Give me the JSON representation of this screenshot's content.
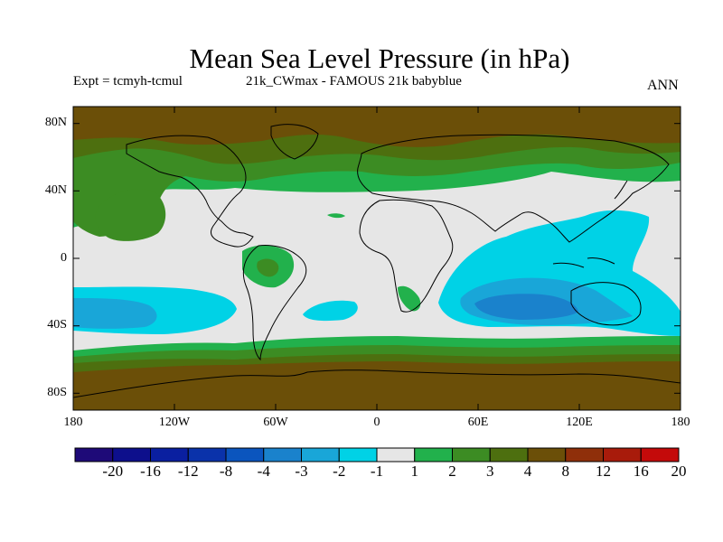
{
  "title": "Mean Sea Level Pressure (in hPa)",
  "left_label": "Expt = tcmyh-tcmul",
  "center_label": "21k_CWmax - FAMOUS 21k babyblue",
  "right_label": "ANN",
  "map": {
    "lat_ticks": [
      "80N",
      "40N",
      "0",
      "40S",
      "80S"
    ],
    "lon_ticks": [
      "180",
      "120W",
      "60W",
      "0",
      "60E",
      "120E",
      "180"
    ],
    "lat_values": [
      80,
      40,
      0,
      -40,
      -80
    ],
    "lon_values": [
      -180,
      -120,
      -60,
      0,
      60,
      120,
      180
    ]
  },
  "colorbar": {
    "labels": [
      "-20",
      "-16",
      "-12",
      "-8",
      "-4",
      "-3",
      "-2",
      "-1",
      "1",
      "2",
      "3",
      "4",
      "8",
      "12",
      "16",
      "20"
    ],
    "colors": [
      "#1e0a78",
      "#0d0f8c",
      "#0a1fa0",
      "#0a32aa",
      "#0b55be",
      "#1a82cc",
      "#19a6d8",
      "#00d2e6",
      "#e6e6e6",
      "#22b14c",
      "#3c8c23",
      "#4d6f0f",
      "#6b4f08",
      "#8f2f0a",
      "#a81b0b",
      "#c40a0a"
    ]
  },
  "colors": {
    "neutral": "#e6e6e6",
    "cyan": "#00d2e6",
    "light_blue": "#19a6d8",
    "mid_blue": "#1a82cc",
    "green": "#22b14c",
    "mid_green": "#3c8c23",
    "olive": "#4d6f0f",
    "brown": "#6b4f08"
  }
}
